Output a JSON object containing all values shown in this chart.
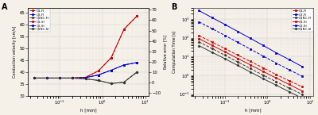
{
  "panel_A": {
    "title": "A",
    "xlabel": "h [mm]",
    "ylabel_left": "Conduction velocity [cm/s]",
    "ylabel_right": "Relative error [%]",
    "ylim_left": [
      30,
      67
    ],
    "ylim_right": [
      -13,
      72
    ],
    "xlim": [
      0.018,
      12
    ],
    "h_values": [
      0.025,
      0.05,
      0.1,
      0.2,
      0.4,
      0.8,
      1.6,
      3.2,
      6.4
    ],
    "series": {
      "Q1-FI": {
        "color": "#cc0000",
        "linestyle": "--",
        "marker": "s",
        "ms": 1.8,
        "values": [
          37.5,
          37.5,
          37.5,
          37.5,
          37.8,
          40.5,
          46.0,
          58.0,
          63.5
        ]
      },
      "Q2-FI": {
        "color": "#0000cc",
        "linestyle": "--",
        "marker": "s",
        "ms": 1.8,
        "values": [
          37.5,
          37.5,
          37.5,
          37.5,
          37.7,
          38.8,
          40.8,
          43.0,
          44.0
        ]
      },
      "Q1NC-FI": {
        "color": "#333333",
        "linestyle": "--",
        "marker": "D",
        "ms": 1.5,
        "values": [
          37.5,
          37.5,
          37.5,
          37.5,
          37.2,
          36.5,
          35.2,
          35.8,
          40.0
        ]
      },
      "Q1-SI": {
        "color": "#cc0000",
        "linestyle": "-",
        "marker": "s",
        "ms": 1.8,
        "values": [
          37.5,
          37.5,
          37.5,
          37.5,
          37.8,
          40.5,
          46.0,
          58.0,
          63.5
        ]
      },
      "Q2-SI": {
        "color": "#0000cc",
        "linestyle": "-",
        "marker": "s",
        "ms": 1.8,
        "values": [
          37.5,
          37.5,
          37.5,
          37.5,
          37.7,
          38.8,
          40.8,
          43.0,
          44.0
        ]
      },
      "Q1NC-SI": {
        "color": "#333333",
        "linestyle": "-",
        "marker": "D",
        "ms": 1.5,
        "values": [
          37.5,
          37.5,
          37.5,
          37.5,
          37.2,
          36.5,
          35.2,
          35.8,
          40.0
        ]
      }
    }
  },
  "panel_B": {
    "title": "B",
    "xlabel": "h [mm]",
    "ylabel": "Computation Time [s]",
    "xlim": [
      0.018,
      12
    ],
    "ylim": [
      0.08,
      4000
    ],
    "h_values": [
      0.025,
      0.05,
      0.1,
      0.2,
      0.4,
      0.8,
      1.6,
      3.2,
      6.4
    ],
    "series": {
      "Q1-FI": {
        "color": "#cc0000",
        "linestyle": "--",
        "marker": "s",
        "ms": 1.8,
        "values": [
          130,
          60,
          27,
          12,
          5.5,
          2.5,
          1.1,
          0.52,
          0.25
        ]
      },
      "Q2-FI": {
        "color": "#0000cc",
        "linestyle": "--",
        "marker": "s",
        "ms": 1.8,
        "values": [
          700,
          310,
          135,
          58,
          25,
          10.5,
          4.5,
          2.0,
          0.92
        ]
      },
      "Q1NC-FI": {
        "color": "#333333",
        "linestyle": "--",
        "marker": "D",
        "ms": 1.5,
        "values": [
          60,
          27,
          12,
          5.2,
          2.3,
          1.02,
          0.46,
          0.21,
          0.1
        ]
      },
      "Q1-SI": {
        "color": "#cc0000",
        "linestyle": "-",
        "marker": "s",
        "ms": 1.8,
        "values": [
          90,
          40,
          18,
          8.0,
          3.6,
          1.6,
          0.72,
          0.33,
          0.15
        ]
      },
      "Q2-SI": {
        "color": "#0000cc",
        "linestyle": "-",
        "marker": "s",
        "ms": 1.8,
        "values": [
          2800,
          1200,
          520,
          220,
          93,
          39,
          16,
          7.0,
          3.0
        ]
      },
      "Q1NC-SI": {
        "color": "#333333",
        "linestyle": "-",
        "marker": "D",
        "ms": 1.5,
        "values": [
          38,
          17,
          7.8,
          3.4,
          1.5,
          0.66,
          0.3,
          0.135,
          0.062
        ]
      }
    }
  },
  "bg_color": "#f5f0e8",
  "grid_color": "#cccccc"
}
